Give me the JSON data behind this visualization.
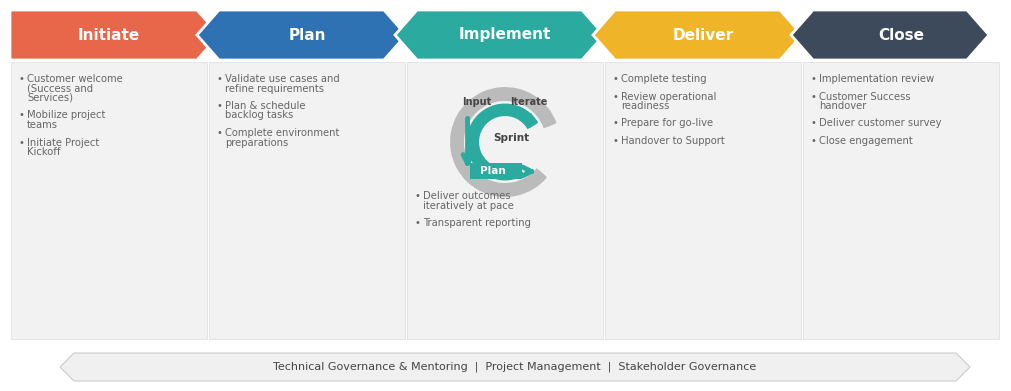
{
  "phases": [
    "Initiate",
    "Plan",
    "Implement",
    "Deliver",
    "Close"
  ],
  "colors": [
    "#E8664A",
    "#2F72B3",
    "#2BAAA0",
    "#F0B429",
    "#3D4A5C"
  ],
  "bg_color": "#F2F2F2",
  "white": "#FFFFFF",
  "text_color": "#666666",
  "header_text_color": "#FFFFFF",
  "bullet_items": [
    [
      "Customer welcome\n(Success and\nServices)",
      "Mobilize project\nteams",
      "Initiate Project\nKickoff"
    ],
    [
      "Validate use cases and\nrefine requirements",
      "Plan & schedule\nbacklog tasks",
      "Complete environment\npreparations"
    ],
    [
      "Deliver outcomes\niteratively at pace",
      "Transparent reporting"
    ],
    [
      "Complete testing",
      "Review operational\nreadiness",
      "Prepare for go-live",
      "Handover to Support"
    ],
    [
      "Implementation review",
      "Customer Success\nhandover",
      "Deliver customer survey",
      "Close engagement"
    ]
  ],
  "footer_text": "Technical Governance & Mentoring  |  Project Management  |  Stakeholder Governance",
  "sprint_label": "Sprint",
  "plan_label": "Plan",
  "input_label": "Input",
  "iterate_label": "Iterate",
  "teal_color": "#2BAAA0",
  "gray_arrow_color": "#BBBBBB"
}
